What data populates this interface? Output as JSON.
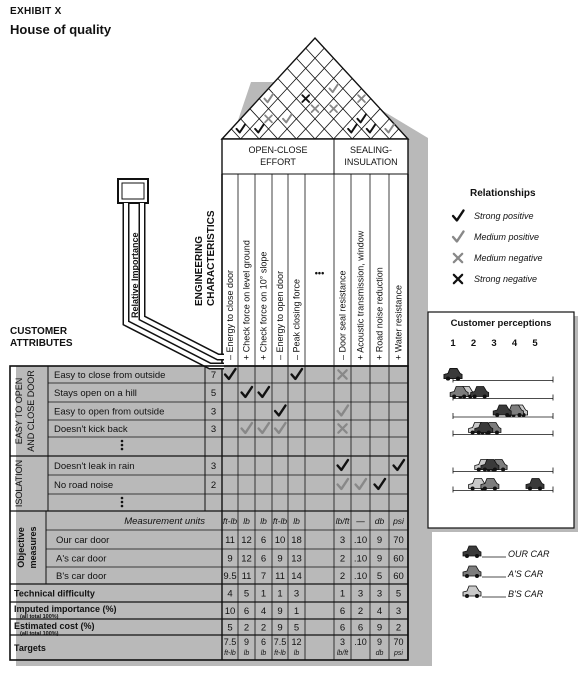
{
  "exhibit": "EXHIBIT X",
  "title": "House of quality",
  "relative_importance": "Relative Importance",
  "engineering_characteristics": [
    "ENGINEERING",
    "CHARACTERISTICS"
  ],
  "customer_attributes": [
    "CUSTOMER",
    "ATTRIBUTES"
  ],
  "groups": [
    {
      "label": [
        "OPEN-CLOSE",
        "EFFORT"
      ]
    },
    {
      "label": [
        "SEALING-",
        "INSULATION"
      ]
    }
  ],
  "characteristics": [
    "– Energy to close door",
    "+ Check force on level ground",
    "+ Check force on 10° slope",
    "– Energy to open door",
    "– Peak closing force",
    "•••",
    "– Door seal resistance",
    "+ Acoustic transmission, window",
    "+ Road noise reduction",
    "+ Water resistance"
  ],
  "side_groups": [
    {
      "label": [
        "EASY TO OPEN",
        "AND CLOSE DOOR"
      ]
    },
    {
      "label": [
        "ISOLATION"
      ]
    }
  ],
  "attributes": [
    {
      "name": "Easy to close from outside",
      "importance": "7"
    },
    {
      "name": "Stays open on a hill",
      "importance": "5"
    },
    {
      "name": "Easy to open from outside",
      "importance": "3"
    },
    {
      "name": "Doesn't kick back",
      "importance": "3"
    },
    {
      "name": "•",
      "importance": ""
    },
    {
      "name": "Doesn't leak in rain",
      "importance": "3"
    },
    {
      "name": "No road noise",
      "importance": "2"
    },
    {
      "name": "•",
      "importance": ""
    }
  ],
  "relationships": [
    {
      "row": 0,
      "col": 0,
      "type": "strong_positive"
    },
    {
      "row": 0,
      "col": 4,
      "type": "strong_positive"
    },
    {
      "row": 0,
      "col": 6,
      "type": "medium_negative"
    },
    {
      "row": 1,
      "col": 1,
      "type": "strong_positive"
    },
    {
      "row": 1,
      "col": 2,
      "type": "strong_positive"
    },
    {
      "row": 2,
      "col": 3,
      "type": "strong_positive"
    },
    {
      "row": 2,
      "col": 6,
      "type": "medium_positive"
    },
    {
      "row": 3,
      "col": 1,
      "type": "medium_positive"
    },
    {
      "row": 3,
      "col": 2,
      "type": "medium_positive"
    },
    {
      "row": 3,
      "col": 3,
      "type": "medium_positive"
    },
    {
      "row": 3,
      "col": 6,
      "type": "medium_negative"
    },
    {
      "row": 5,
      "col": 6,
      "type": "strong_positive"
    },
    {
      "row": 5,
      "col": 9,
      "type": "strong_positive"
    },
    {
      "row": 6,
      "col": 6,
      "type": "medium_positive"
    },
    {
      "row": 6,
      "col": 7,
      "type": "medium_positive"
    },
    {
      "row": 6,
      "col": 8,
      "type": "strong_positive"
    }
  ],
  "roof_marks": [
    {
      "a": 0,
      "b": 1,
      "type": "strong_positive"
    },
    {
      "a": 1,
      "b": 2,
      "type": "strong_positive"
    },
    {
      "a": 0,
      "b": 4,
      "type": "medium_positive"
    },
    {
      "a": 1,
      "b": 3,
      "type": "medium_negative"
    },
    {
      "a": 2,
      "b": 4,
      "type": "medium_positive"
    },
    {
      "a": 3,
      "b": 6,
      "type": "medium_negative"
    },
    {
      "a": 2,
      "b": 6,
      "type": "strong_negative"
    },
    {
      "a": 4,
      "b": 7,
      "type": "medium_negative"
    },
    {
      "a": 5,
      "b": 9,
      "type": "medium_negative"
    },
    {
      "a": 3,
      "b": 8,
      "type": "medium_positive"
    },
    {
      "a": 6,
      "b": 7,
      "type": "strong_positive"
    },
    {
      "a": 7,
      "b": 8,
      "type": "strong_positive"
    },
    {
      "a": 8,
      "b": 9,
      "type": "medium_positive"
    },
    {
      "a": 6,
      "b": 8,
      "type": "strong_positive"
    }
  ],
  "legend": {
    "title": "Relationships",
    "items": [
      {
        "type": "strong_positive",
        "label": "Strong positive"
      },
      {
        "type": "medium_positive",
        "label": "Medium positive"
      },
      {
        "type": "medium_negative",
        "label": "Medium negative"
      },
      {
        "type": "strong_negative",
        "label": "Strong negative"
      }
    ]
  },
  "perceptions": {
    "title": "Customer perceptions",
    "scale": [
      "1",
      "2",
      "3",
      "4",
      "5"
    ],
    "rows": [
      {
        "row": 0,
        "our": 1,
        "a": 1,
        "b": 1
      },
      {
        "row": 1,
        "our": 2.3,
        "a": 1.3,
        "b": 1.6
      },
      {
        "row": 2,
        "our": 3.4,
        "a": 4,
        "b": 4.2
      },
      {
        "row": 3,
        "our": 2.5,
        "a": 2.9,
        "b": 2.2
      },
      {
        "row": 5,
        "our": 2.8,
        "a": 3.2,
        "b": 2.5
      },
      {
        "row": 6,
        "our": 5,
        "a": 2.8,
        "b": 2.2
      }
    ]
  },
  "car_legend": [
    {
      "label": "OUR CAR",
      "shade": "dark"
    },
    {
      "label": "A'S CAR",
      "shade": "medium"
    },
    {
      "label": "B'S CAR",
      "shade": "light"
    }
  ],
  "objective_measures": {
    "side_label": [
      "Objective",
      "measures"
    ],
    "rows": [
      {
        "label": "Measurement units",
        "values": [
          "ft-lb",
          "lb",
          "lb",
          "ft-lb",
          "lb",
          "",
          "lb/ft",
          "—",
          "db",
          "psi"
        ]
      },
      {
        "label": "Our car door",
        "values": [
          "11",
          "12",
          "6",
          "10",
          "18",
          "",
          "3",
          ".10",
          "9",
          "70"
        ]
      },
      {
        "label": "A's car door",
        "values": [
          "9",
          "12",
          "6",
          "9",
          "13",
          "",
          "2",
          ".10",
          "9",
          "60"
        ]
      },
      {
        "label": "B's car door",
        "values": [
          "9.5",
          "11",
          "7",
          "11",
          "14",
          "",
          "2",
          ".10",
          "5",
          "60"
        ]
      }
    ]
  },
  "bottom_rows": [
    {
      "label": "Technical difficulty",
      "sub": "",
      "values": [
        "4",
        "5",
        "1",
        "1",
        "3",
        "",
        "1",
        "3",
        "3",
        "5"
      ]
    },
    {
      "label": "Imputed importance (%)",
      "sub": "(all total 100%)",
      "values": [
        "10",
        "6",
        "4",
        "9",
        "1",
        "",
        "6",
        "2",
        "4",
        "3"
      ]
    },
    {
      "label": "Estimated cost (%)",
      "sub": "(all total 100%)",
      "values": [
        "5",
        "2",
        "2",
        "9",
        "5",
        "",
        "6",
        "6",
        "9",
        "2"
      ]
    }
  ],
  "targets": {
    "label": "Targets",
    "values": [
      [
        "7.5",
        "ft-lb"
      ],
      [
        "9",
        "lb"
      ],
      [
        "6",
        "lb"
      ],
      [
        "7.5",
        "ft-lb"
      ],
      [
        "12",
        "lb"
      ],
      [
        "",
        ""
      ],
      [
        "3",
        "lb/ft"
      ],
      [
        ".10",
        ""
      ],
      [
        "9",
        "db"
      ],
      [
        "70",
        "psi"
      ]
    ]
  }
}
